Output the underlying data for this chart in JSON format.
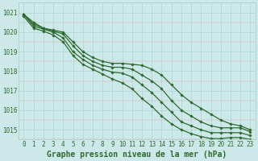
{
  "series": [
    {
      "values": [
        1020.9,
        1020.5,
        1020.2,
        1020.1,
        1020.0,
        1019.5,
        1019.0,
        1018.7,
        1018.5,
        1018.4,
        1018.4,
        1018.35,
        1018.3,
        1018.1,
        1017.8,
        1017.3,
        1016.8,
        1016.4,
        1016.1,
        1015.8,
        1015.5,
        1015.3,
        1015.2,
        1015.0
      ],
      "color": "#2d6a2d",
      "lw": 0.9
    },
    {
      "values": [
        1020.9,
        1020.4,
        1020.2,
        1020.05,
        1019.9,
        1019.3,
        1018.8,
        1018.5,
        1018.3,
        1018.2,
        1018.2,
        1018.1,
        1017.8,
        1017.5,
        1017.1,
        1016.5,
        1016.0,
        1015.7,
        1015.4,
        1015.2,
        1015.1,
        1015.1,
        1015.1,
        1014.9
      ],
      "color": "#2d6a2d",
      "lw": 0.9
    },
    {
      "values": [
        1020.9,
        1020.3,
        1020.15,
        1020.0,
        1019.7,
        1019.0,
        1018.6,
        1018.3,
        1018.1,
        1017.95,
        1017.9,
        1017.7,
        1017.3,
        1016.9,
        1016.4,
        1015.9,
        1015.4,
        1015.2,
        1015.0,
        1014.85,
        1014.85,
        1014.85,
        1014.85,
        1014.7
      ],
      "color": "#2d6a2d",
      "lw": 0.9
    },
    {
      "values": [
        1020.8,
        1020.2,
        1020.05,
        1019.85,
        1019.5,
        1018.8,
        1018.35,
        1018.1,
        1017.85,
        1017.6,
        1017.4,
        1017.1,
        1016.6,
        1016.2,
        1015.7,
        1015.3,
        1015.0,
        1014.8,
        1014.65,
        1014.55,
        1014.55,
        1014.6,
        1014.6,
        1014.5
      ],
      "color": "#2d6a2d",
      "lw": 0.9
    }
  ],
  "x_values": [
    0,
    1,
    2,
    3,
    4,
    5,
    6,
    7,
    8,
    9,
    10,
    11,
    12,
    13,
    14,
    15,
    16,
    17,
    18,
    19,
    20,
    21,
    22,
    23
  ],
  "ylim": [
    1014.5,
    1021.5
  ],
  "yticks": [
    1015,
    1016,
    1017,
    1018,
    1019,
    1020,
    1021
  ],
  "xticks": [
    0,
    1,
    2,
    3,
    4,
    5,
    6,
    7,
    8,
    9,
    10,
    11,
    12,
    13,
    14,
    15,
    16,
    17,
    18,
    19,
    20,
    21,
    22,
    23
  ],
  "xlabel": "Graphe pression niveau de la mer (hPa)",
  "bg_color": "#cce8e8",
  "grid_color": "#aacccc",
  "line_color": "#2d6a2d",
  "marker": "D",
  "marker_size": 1.8,
  "tick_color": "#2d6a2d",
  "label_color": "#2d6a2d",
  "tick_fontsize": 5.5,
  "xlabel_fontsize": 7.0
}
